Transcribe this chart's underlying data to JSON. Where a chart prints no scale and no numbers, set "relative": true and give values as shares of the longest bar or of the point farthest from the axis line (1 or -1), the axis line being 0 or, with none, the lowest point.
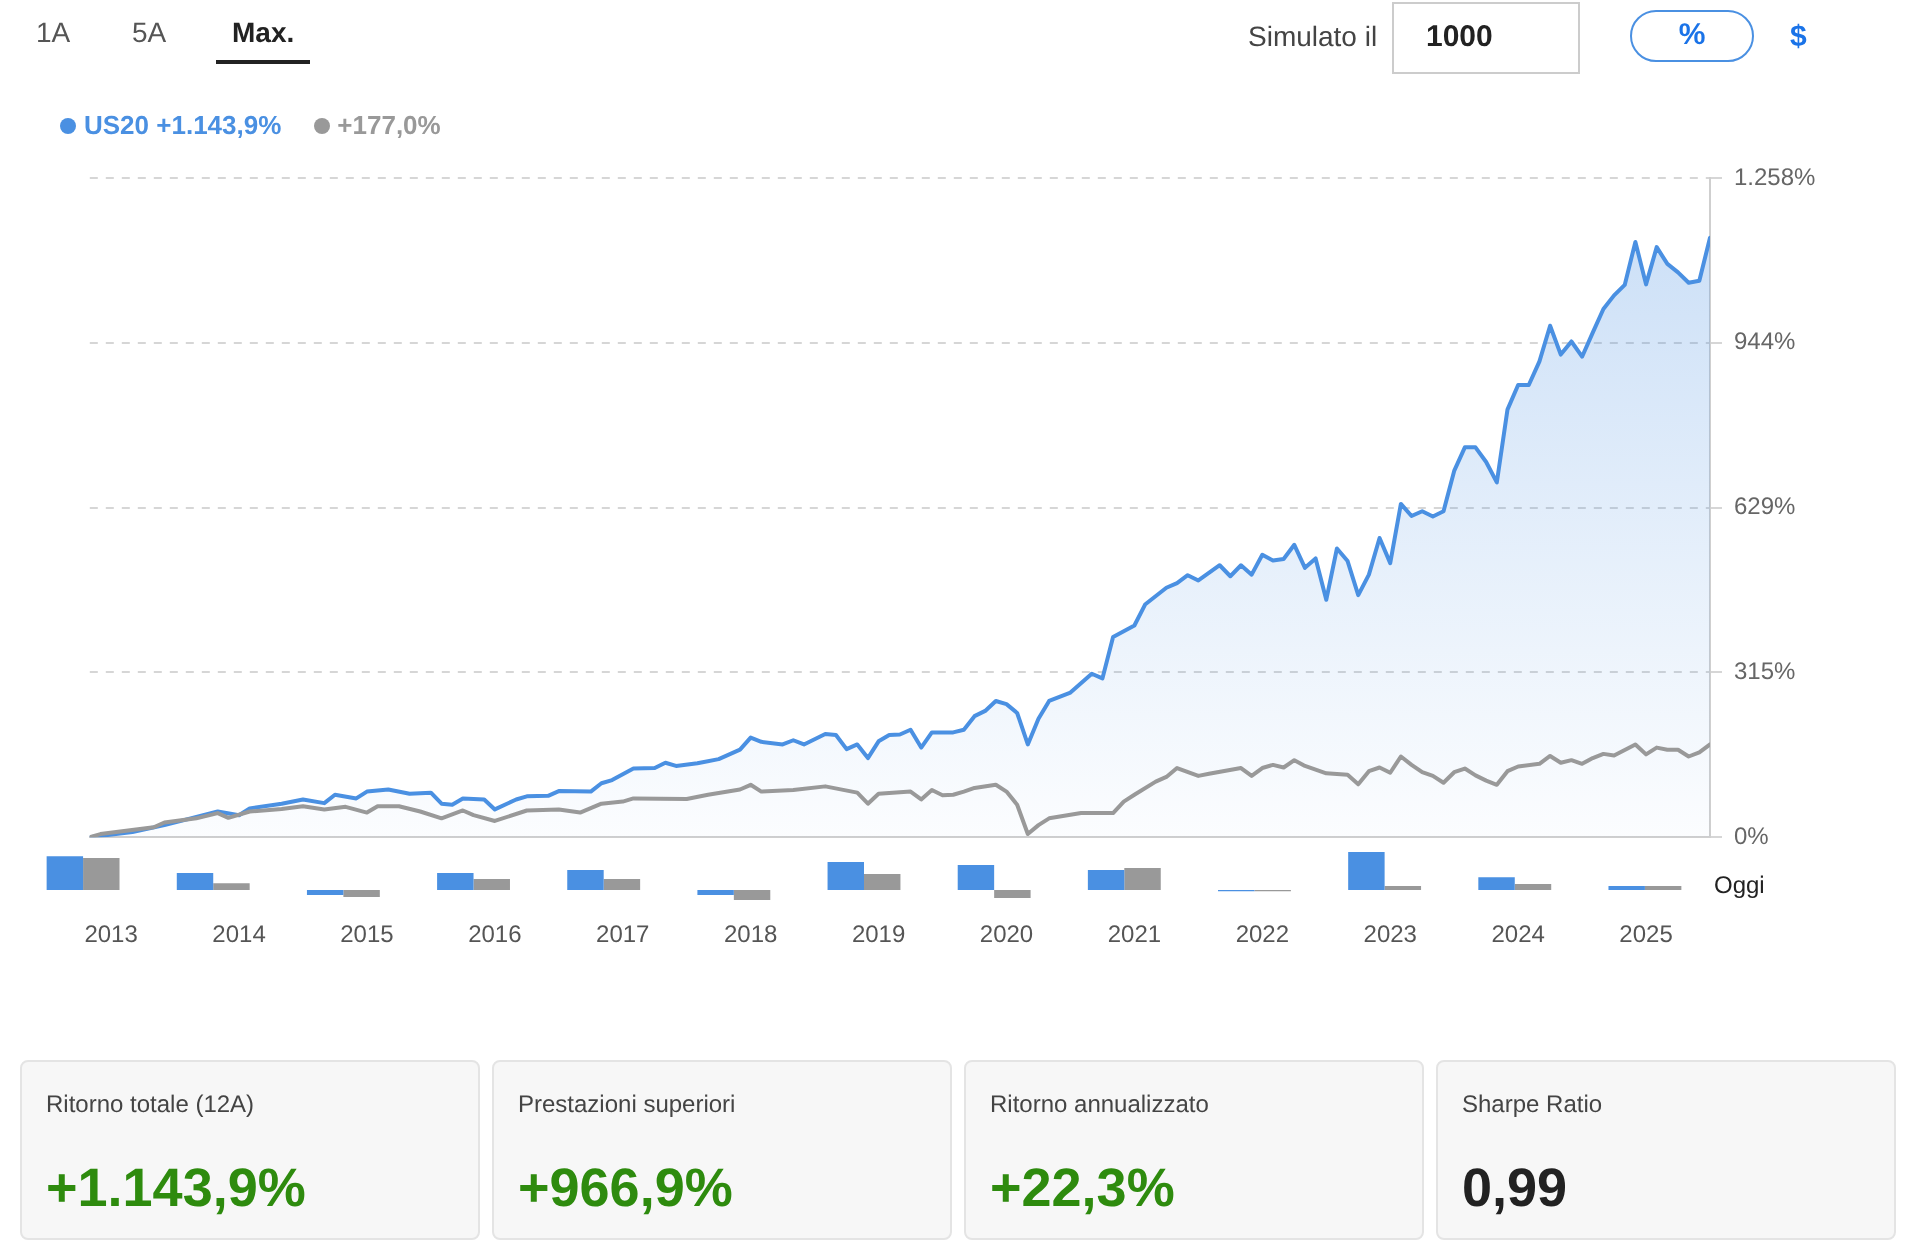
{
  "chart_data": [
    {
      "type": "line",
      "annotations": [
        "1A",
        "5A",
        "Max.",
        "Simulato il",
        "1000",
        "%",
        "$"
      ],
      "legend": "top left",
      "grid": "y",
      "marker": "none",
      "line_style": "solid",
      "xlim": [
        "2012-11",
        "2025-07"
      ],
      "xticks": [
        {
          "value": "2013-01",
          "label": "2013"
        },
        {
          "value": "2014-01",
          "label": "2014"
        },
        {
          "value": "2015-01",
          "label": "2015"
        },
        {
          "value": "2016-01",
          "label": "2016"
        },
        {
          "value": "2017-01",
          "label": "2017"
        },
        {
          "value": "2018-01",
          "label": "2018"
        },
        {
          "value": "2019-01",
          "label": "2019"
        },
        {
          "value": "2020-01",
          "label": "2020"
        },
        {
          "value": "2021-01",
          "label": "2021"
        },
        {
          "value": "2022-01",
          "label": "2022"
        },
        {
          "value": "2023-01",
          "label": "2023"
        },
        {
          "value": "2024-01",
          "label": "2024"
        },
        {
          "value": "2025-01",
          "label": "2025"
        }
      ],
      "ylim": [
        0,
        1258
      ],
      "yticks": [
        {
          "value": 0,
          "label": "0%"
        },
        {
          "value": 315,
          "label": "315%"
        },
        {
          "value": 629,
          "label": "629%"
        },
        {
          "value": 944,
          "label": "944%"
        },
        {
          "value": 1258,
          "label": "1.258%"
        }
      ],
      "series": [
        {
          "name": "US20 +1.143,9%",
          "type": "area",
          "color": "#4a90e2",
          "x": [
            "2012-11",
            "2013-03",
            "2013-06",
            "2013-11",
            "2014-01",
            "2014-02",
            "2014-05",
            "2014-07",
            "2014-09",
            "2014-10",
            "2014-12",
            "2015-01",
            "2015-03",
            "2015-05",
            "2015-07",
            "2015-08",
            "2015-09",
            "2015-10",
            "2015-12",
            "2016-01",
            "2016-03",
            "2016-04",
            "2016-06",
            "2016-07",
            "2016-10",
            "2016-11",
            "2016-12",
            "2017-02",
            "2017-04",
            "2017-05",
            "2017-06",
            "2017-08",
            "2017-10",
            "2017-12",
            "2018-01",
            "2018-02",
            "2018-04",
            "2018-05",
            "2018-06",
            "2018-08",
            "2018-09",
            "2018-10",
            "2018-11",
            "2018-12",
            "2019-01",
            "2019-02",
            "2019-03",
            "2019-04",
            "2019-05",
            "2019-06",
            "2019-07",
            "2019-08",
            "2019-09",
            "2019-10",
            "2019-11",
            "2019-12",
            "2020-01",
            "2020-02",
            "2020-03",
            "2020-04",
            "2020-05",
            "2020-07",
            "2020-09",
            "2020-10",
            "2020-11",
            "2021-01",
            "2021-02",
            "2021-04",
            "2021-05",
            "2021-06",
            "2021-07",
            "2021-09",
            "2021-10",
            "2021-11",
            "2021-12",
            "2022-01",
            "2022-02",
            "2022-03",
            "2022-04",
            "2022-05",
            "2022-06",
            "2022-07",
            "2022-08",
            "2022-09",
            "2022-10",
            "2022-11",
            "2022-12",
            "2023-01",
            "2023-02",
            "2023-03",
            "2023-04",
            "2023-05",
            "2023-06",
            "2023-07",
            "2023-08",
            "2023-09",
            "2023-10",
            "2023-11",
            "2023-12",
            "2024-01",
            "2024-02",
            "2024-03",
            "2024-04",
            "2024-05",
            "2024-06",
            "2024-07",
            "2024-08",
            "2024-09",
            "2024-10",
            "2024-11",
            "2024-12",
            "2025-01",
            "2025-02",
            "2025-03",
            "2025-04",
            "2025-05",
            "2025-06",
            "2025-07"
          ],
          "values": [
            0,
            10,
            23,
            49,
            42,
            55,
            64,
            72,
            65,
            81,
            74,
            87,
            91,
            83,
            85,
            64,
            62,
            74,
            72,
            53,
            72,
            78,
            79,
            88,
            87,
            103,
            109,
            131,
            132,
            142,
            136,
            141,
            149,
            167,
            190,
            182,
            177,
            185,
            177,
            197,
            195,
            168,
            177,
            151,
            183,
            195,
            196,
            205,
            171,
            200,
            200,
            200,
            205,
            231,
            241,
            260,
            254,
            237,
            177,
            226,
            260,
            276,
            312,
            303,
            382,
            404,
            444,
            476,
            485,
            500,
            490,
            519,
            498,
            519,
            501,
            539,
            528,
            531,
            558,
            514,
            532,
            453,
            551,
            527,
            462,
            501,
            571,
            523,
            636,
            613,
            622,
            612,
            622,
            699,
            744,
            744,
            716,
            677,
            816,
            863,
            863,
            908,
            976,
            921,
            946,
            917,
            963,
            1008,
            1034,
            1054,
            1136,
            1055,
            1126,
            1094,
            1078,
            1058,
            1062,
            1143.9
          ]
        },
        {
          "name": "+177,0%",
          "type": "line",
          "color": "#999999",
          "x": [
            "2012-11",
            "2012-12",
            "2013-05",
            "2013-06",
            "2013-09",
            "2013-11",
            "2013-12",
            "2014-02",
            "2014-05",
            "2014-07",
            "2014-09",
            "2014-11",
            "2015-01",
            "2015-02",
            "2015-04",
            "2015-06",
            "2015-08",
            "2015-10",
            "2015-11",
            "2016-01",
            "2016-04",
            "2016-07",
            "2016-09",
            "2016-11",
            "2017-01",
            "2017-02",
            "2017-07",
            "2017-09",
            "2017-12",
            "2018-01",
            "2018-02",
            "2018-05",
            "2018-08",
            "2018-11",
            "2018-12",
            "2019-01",
            "2019-04",
            "2019-05",
            "2019-06",
            "2019-07",
            "2019-08",
            "2019-09",
            "2019-10",
            "2019-12",
            "2020-01",
            "2020-02",
            "2020-03",
            "2020-04",
            "2020-05",
            "2020-08",
            "2020-11",
            "2020-12",
            "2021-01",
            "2021-03",
            "2021-04",
            "2021-05",
            "2021-07",
            "2021-08",
            "2021-11",
            "2021-12",
            "2022-01",
            "2022-02",
            "2022-03",
            "2022-04",
            "2022-05",
            "2022-07",
            "2022-09",
            "2022-10",
            "2022-11",
            "2022-12",
            "2023-01",
            "2023-02",
            "2023-03",
            "2023-04",
            "2023-05",
            "2023-06",
            "2023-07",
            "2023-08",
            "2023-09",
            "2023-10",
            "2023-11",
            "2023-12",
            "2024-01",
            "2024-03",
            "2024-04",
            "2024-05",
            "2024-06",
            "2024-07",
            "2024-08",
            "2024-09",
            "2024-10",
            "2024-12",
            "2025-01",
            "2025-02",
            "2025-03",
            "2025-04",
            "2025-05",
            "2025-06",
            "2025-07"
          ],
          "values": [
            0,
            6,
            19,
            28,
            36,
            46,
            37,
            49,
            54,
            59,
            53,
            58,
            47,
            59,
            59,
            49,
            36,
            51,
            42,
            31,
            51,
            53,
            47,
            64,
            68,
            74,
            73,
            81,
            91,
            100,
            87,
            90,
            97,
            85,
            64,
            83,
            87,
            72,
            90,
            80,
            81,
            87,
            94,
            100,
            87,
            62,
            6,
            23,
            36,
            46,
            46,
            68,
            81,
            106,
            115,
            132,
            117,
            121,
            132,
            117,
            132,
            138,
            133,
            147,
            136,
            122,
            119,
            101,
            126,
            133,
            123,
            154,
            138,
            124,
            117,
            104,
            124,
            131,
            118,
            108,
            100,
            126,
            135,
            140,
            155,
            142,
            147,
            140,
            151,
            159,
            156,
            177,
            158,
            171,
            167,
            167,
            154,
            162,
            177
          ]
        }
      ]
    },
    {
      "type": "bar",
      "relative": true,
      "tick_labels": false,
      "categories": [
        "2013",
        "2014",
        "2015",
        "2016",
        "2017",
        "2018",
        "2019",
        "2020",
        "2021",
        "2022",
        "2023",
        "2024",
        "2025"
      ],
      "annotations": [
        "Oggi"
      ],
      "series": [
        {
          "color": "#4a90e2",
          "values": [
            0.89,
            0.45,
            -0.13,
            0.45,
            0.53,
            -0.13,
            0.74,
            0.66,
            0.53,
            -0.03,
            1,
            0.34,
            0.11
          ]
        },
        {
          "color": "#999999",
          "values": [
            0.84,
            0.18,
            -0.18,
            0.29,
            0.29,
            -0.26,
            0.42,
            -0.21,
            0.58,
            -0.03,
            0.11,
            0.16,
            0.11
          ]
        }
      ]
    },
    {
      "type": "other",
      "title": "Ritorno totale (12A)",
      "annotations": [
        "+1.143,9%"
      ],
      "color": "#2e8b0e"
    },
    {
      "type": "other",
      "title": "Prestazioni superiori",
      "annotations": [
        "+966,9%"
      ],
      "color": "#2e8b0e"
    },
    {
      "type": "other",
      "title": "Ritorno annualizzato",
      "annotations": [
        "+22,3%"
      ],
      "color": "#2e8b0e"
    },
    {
      "type": "other",
      "title": "Sharpe Ratio",
      "annotations": [
        "0,99"
      ],
      "color": "#222222"
    }
  ]
}
